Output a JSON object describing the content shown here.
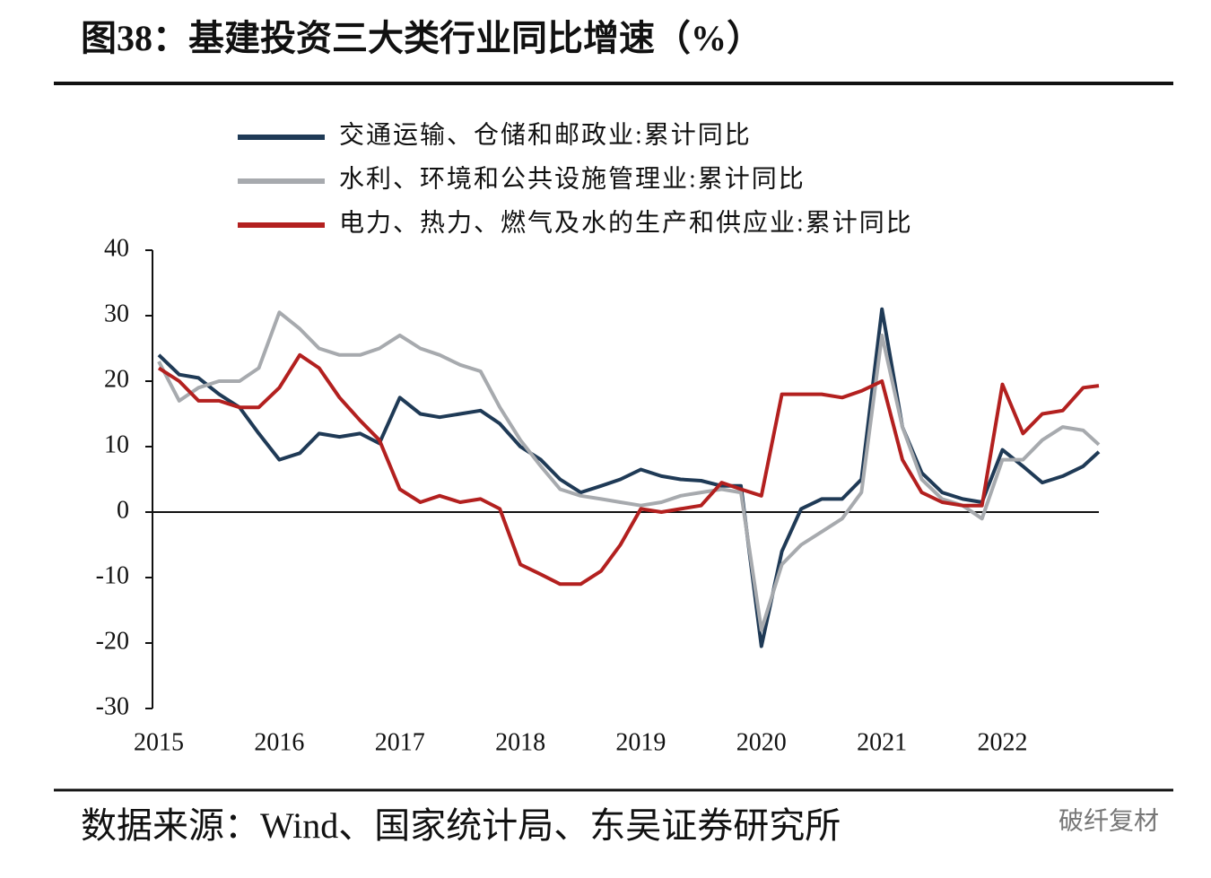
{
  "chart_data": {
    "type": "line",
    "title": "图38：基建投资三大类行业同比增速（%）",
    "source": "数据来源：Wind、国家统计局、东吴证券研究所",
    "watermark": "破纤复材",
    "x": [
      2015,
      2015.17,
      2015.33,
      2015.5,
      2015.67,
      2015.83,
      2016,
      2016.17,
      2016.33,
      2016.5,
      2016.67,
      2016.83,
      2017,
      2017.17,
      2017.33,
      2017.5,
      2017.67,
      2017.83,
      2018,
      2018.17,
      2018.33,
      2018.5,
      2018.67,
      2018.83,
      2019,
      2019.17,
      2019.33,
      2019.5,
      2019.67,
      2019.83,
      2020,
      2020.17,
      2020.33,
      2020.5,
      2020.67,
      2020.83,
      2021,
      2021.17,
      2021.33,
      2021.5,
      2021.67,
      2021.83,
      2022,
      2022.17,
      2022.33,
      2022.5,
      2022.67,
      2022.8
    ],
    "series": [
      {
        "name": "交通运输、仓储和邮政业:累计同比",
        "color": "#1f3a56",
        "values": [
          24,
          21,
          20.5,
          18,
          16,
          12,
          8,
          9,
          12,
          11.5,
          12,
          10.5,
          17.5,
          15,
          14.5,
          15,
          15.5,
          13.5,
          10,
          8,
          5,
          3,
          4,
          5,
          6.5,
          5.5,
          5,
          4.8,
          4,
          4,
          -20.5,
          -6,
          0.5,
          2,
          2,
          5,
          31,
          13,
          6,
          3,
          2,
          1.5,
          9.5,
          7,
          4.5,
          5.5,
          7,
          9.2
        ]
      },
      {
        "name": "水利、环境和公共设施管理业:累计同比",
        "color": "#a7aaae",
        "values": [
          23,
          17,
          19,
          20,
          20,
          22,
          30.5,
          28,
          25,
          24,
          24,
          25,
          27,
          25,
          24,
          22.5,
          21.5,
          16,
          11,
          7,
          3.5,
          2.5,
          2,
          1.5,
          1,
          1.5,
          2.5,
          3,
          3.5,
          3,
          -18,
          -8,
          -5,
          -3,
          -1,
          3,
          27,
          13,
          5,
          2,
          1,
          -1,
          8,
          8,
          11,
          13,
          12.5,
          10.3
        ]
      },
      {
        "name": "电力、热力、燃气及水的生产和供应业:累计同比",
        "color": "#b3201f",
        "values": [
          22,
          20,
          17,
          17,
          16,
          16,
          19,
          24,
          22,
          17.5,
          14,
          11,
          3.5,
          1.5,
          2.5,
          1.5,
          2,
          0.5,
          -8,
          -9.5,
          -11,
          -11,
          -9,
          -5,
          0.5,
          0,
          0.5,
          1,
          4.5,
          3.5,
          2.5,
          18,
          18,
          18,
          17.5,
          18.5,
          20,
          8,
          3,
          1.5,
          1,
          1,
          19.5,
          12,
          15,
          15.5,
          19,
          19.3
        ]
      }
    ],
    "xlim": [
      2015,
      2022.8
    ],
    "xticks": [
      2015,
      2016,
      2017,
      2018,
      2019,
      2020,
      2021,
      2022
    ],
    "ylim": [
      -30,
      40
    ],
    "yticks": [
      -30,
      -20,
      -10,
      0,
      10,
      20,
      30,
      40
    ],
    "grid": false
  }
}
